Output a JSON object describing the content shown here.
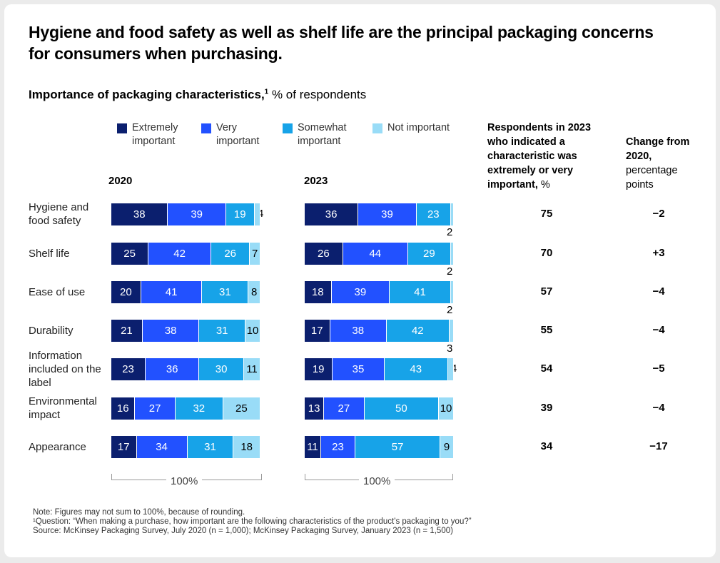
{
  "headline": "Hygiene and food safety as well as shelf life are the principal packaging concerns for consumers when purchasing.",
  "subtitle": {
    "bold": "Importance of packaging characteristics,",
    "sup": "1",
    "rest": " % of respondents"
  },
  "legend": [
    {
      "label": "Extremely important",
      "color": "#0b1f6e"
    },
    {
      "label": "Very important",
      "color": "#2251ff"
    },
    {
      "label": "Somewhat important",
      "color": "#17a3e8"
    },
    {
      "label": "Not important",
      "color": "#99dcf7"
    }
  ],
  "columns": {
    "respondents_bold": "Respondents in 2023 who indicated a characteristic was extremely or very important,",
    "respondents_unit": " %",
    "change_bold": "Change from 2020,",
    "change_unit": "percentage points"
  },
  "bracket_label": "100%",
  "chart_data": {
    "type": "bar",
    "stacked": true,
    "orientation": "horizontal",
    "title": "Importance of packaging characteristics, % of respondents",
    "categories": [
      "Hygiene and food safety",
      "Shelf life",
      "Ease of use",
      "Durability",
      "Information included on the label",
      "Environmental impact",
      "Appearance"
    ],
    "panels": [
      {
        "year": "2020",
        "series": [
          {
            "name": "Extremely important",
            "values": [
              38,
              25,
              20,
              21,
              23,
              16,
              17
            ]
          },
          {
            "name": "Very important",
            "values": [
              39,
              42,
              41,
              38,
              36,
              27,
              34
            ]
          },
          {
            "name": "Somewhat important",
            "values": [
              19,
              26,
              31,
              31,
              30,
              32,
              31
            ]
          },
          {
            "name": "Not important",
            "values": [
              4,
              7,
              8,
              10,
              11,
              25,
              18
            ]
          }
        ]
      },
      {
        "year": "2023",
        "series": [
          {
            "name": "Extremely important",
            "values": [
              36,
              26,
              18,
              17,
              19,
              13,
              11
            ]
          },
          {
            "name": "Very important",
            "values": [
              39,
              44,
              39,
              38,
              35,
              27,
              23
            ]
          },
          {
            "name": "Somewhat important",
            "values": [
              23,
              29,
              41,
              42,
              43,
              50,
              57
            ]
          },
          {
            "name": "Not important",
            "values": [
              2,
              2,
              2,
              3,
              4,
              10,
              9
            ]
          }
        ]
      }
    ],
    "respondents_2023": [
      "75",
      "70",
      "57",
      "55",
      "54",
      "39",
      "34"
    ],
    "change_from_2020": [
      "−2",
      "+3",
      "−4",
      "−4",
      "−5",
      "−4",
      "−17"
    ]
  },
  "footnotes": [
    "Note: Figures may not sum to 100%, because of rounding.",
    "¹Question: “When making a purchase, how important are the following characteristics of the product's packaging to you?”",
    "Source: McKinsey Packaging Survey, July 2020 (n = 1,000); McKinsey Packaging Survey, January 2023 (n = 1,500)"
  ]
}
